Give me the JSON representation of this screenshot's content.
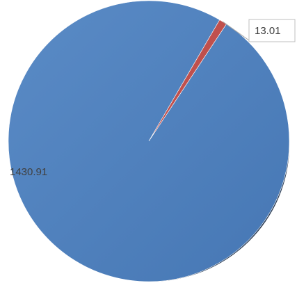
{
  "chart_data": {
    "type": "pie",
    "title": "",
    "slices": [
      {
        "label": "1430.91",
        "value": 1430.91,
        "color": "#4F81BD"
      },
      {
        "label": "13.01",
        "value": 13.01,
        "color": "#C0504D"
      }
    ],
    "legend": "none",
    "start_angle_deg": 33.5
  }
}
